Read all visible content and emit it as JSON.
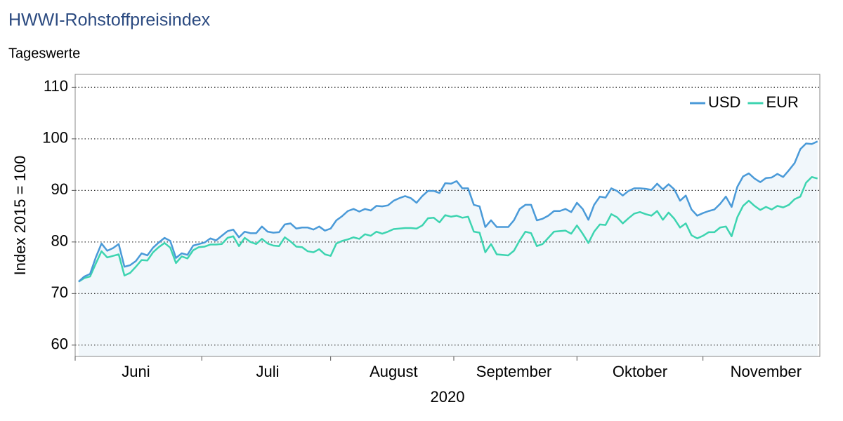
{
  "chart_data": {
    "type": "line",
    "title": "HWWI-Rohstoffpreisindex",
    "subtitle": "Tageswerte",
    "ylabel": "Index 2015 = 100",
    "xlabel": "2020",
    "categories": [
      null,
      null,
      null,
      null,
      null,
      null,
      null,
      null,
      null,
      null,
      "Juni",
      null,
      null,
      null,
      null,
      null,
      null,
      null,
      null,
      null,
      null,
      null,
      null,
      null,
      null,
      null,
      null,
      null,
      null,
      null,
      null,
      null,
      null,
      "Juli",
      null,
      null,
      null,
      null,
      null,
      null,
      null,
      null,
      null,
      null,
      null,
      null,
      null,
      null,
      null,
      null,
      null,
      null,
      null,
      null,
      null,
      "August",
      null,
      null,
      null,
      null,
      null,
      null,
      null,
      null,
      null,
      null,
      null,
      null,
      null,
      null,
      null,
      null,
      null,
      null,
      null,
      null,
      "September",
      null,
      null,
      null,
      null,
      null,
      null,
      null,
      null,
      null,
      null,
      null,
      null,
      null,
      null,
      null,
      null,
      null,
      null,
      null,
      null,
      null,
      "Oktober",
      null,
      null,
      null,
      null,
      null,
      null,
      null,
      null,
      null,
      null,
      null,
      null,
      null,
      null,
      null,
      null,
      null,
      null,
      null,
      null,
      null,
      "November",
      null,
      null,
      null,
      null,
      null,
      null,
      null,
      null,
      null
    ],
    "series": [
      {
        "name": "USD",
        "color": "#4a9ad8",
        "values": [
          72.3,
          73.3,
          73.8,
          77.0,
          79.7,
          78.3,
          78.8,
          79.6,
          75.2,
          75.5,
          76.3,
          77.8,
          77.4,
          78.9,
          79.9,
          80.8,
          80.2,
          76.9,
          77.8,
          77.5,
          79.3,
          79.6,
          79.9,
          80.7,
          80.3,
          81.2,
          82.1,
          82.4,
          80.9,
          82.0,
          81.7,
          81.7,
          83.0,
          82.0,
          81.8,
          81.9,
          83.4,
          83.6,
          82.6,
          82.8,
          82.8,
          82.4,
          83.0,
          82.2,
          82.6,
          84.2,
          85.0,
          86.0,
          86.4,
          85.9,
          86.4,
          86.1,
          87.0,
          86.9,
          87.1,
          88.0,
          88.5,
          88.9,
          88.5,
          87.6,
          88.9,
          89.9,
          89.9,
          89.5,
          91.4,
          91.3,
          91.8,
          90.4,
          90.4,
          87.2,
          86.9,
          82.9,
          84.2,
          82.9,
          82.9,
          82.9,
          84.2,
          86.4,
          87.2,
          87.2,
          84.2,
          84.5,
          85.1,
          86.0,
          86.0,
          86.4,
          85.8,
          87.6,
          86.4,
          84.3,
          87.2,
          88.8,
          88.6,
          90.4,
          89.9,
          89.0,
          89.9,
          90.4,
          90.4,
          90.3,
          90.1,
          91.3,
          90.2,
          91.2,
          90.2,
          88.0,
          89.0,
          86.3,
          85.1,
          85.6,
          86.0,
          86.3,
          87.4,
          88.8,
          86.8,
          90.7,
          92.7,
          93.3,
          92.3,
          91.6,
          92.4,
          92.5,
          93.2,
          92.6,
          93.9,
          95.3,
          98.0,
          99.1,
          99.0,
          99.5
        ]
      },
      {
        "name": "EUR",
        "color": "#3dd4b0",
        "values": [
          72.3,
          73.0,
          73.3,
          75.8,
          78.2,
          77.0,
          77.3,
          77.6,
          73.5,
          74.0,
          75.2,
          76.5,
          76.4,
          78.0,
          79.0,
          79.8,
          78.9,
          75.9,
          77.2,
          76.8,
          78.4,
          79.0,
          79.1,
          79.5,
          79.5,
          79.6,
          80.8,
          81.1,
          79.2,
          80.8,
          80.0,
          79.6,
          80.6,
          79.7,
          79.3,
          79.2,
          80.9,
          80.1,
          79.1,
          79.0,
          78.2,
          78.0,
          78.6,
          77.6,
          77.3,
          79.7,
          80.2,
          80.5,
          80.9,
          80.6,
          81.5,
          81.2,
          82.0,
          81.6,
          82.0,
          82.5,
          82.6,
          82.7,
          82.7,
          82.6,
          83.2,
          84.6,
          84.7,
          83.8,
          85.2,
          84.9,
          85.1,
          84.7,
          84.9,
          82.0,
          81.8,
          78.0,
          79.6,
          77.6,
          77.5,
          77.4,
          78.3,
          80.3,
          82.0,
          81.7,
          79.2,
          79.6,
          80.8,
          82.0,
          82.1,
          82.2,
          81.6,
          83.2,
          81.6,
          79.8,
          82.0,
          83.4,
          83.3,
          85.4,
          84.8,
          83.6,
          84.6,
          85.5,
          85.8,
          85.4,
          85.1,
          86.0,
          84.3,
          85.7,
          84.5,
          82.8,
          83.6,
          81.3,
          80.7,
          81.2,
          81.9,
          81.9,
          82.8,
          83.0,
          81.1,
          84.8,
          87.0,
          88.0,
          87.0,
          86.2,
          86.8,
          86.3,
          87.0,
          86.7,
          87.2,
          88.3,
          88.8,
          91.5,
          92.6,
          92.3
        ]
      }
    ],
    "ylim": [
      57.8,
      112.5
    ],
    "yticks": [
      60,
      70,
      80,
      90,
      100,
      110
    ],
    "grid": true,
    "fill_under": "#e6f0f8",
    "legend": "upper right"
  }
}
